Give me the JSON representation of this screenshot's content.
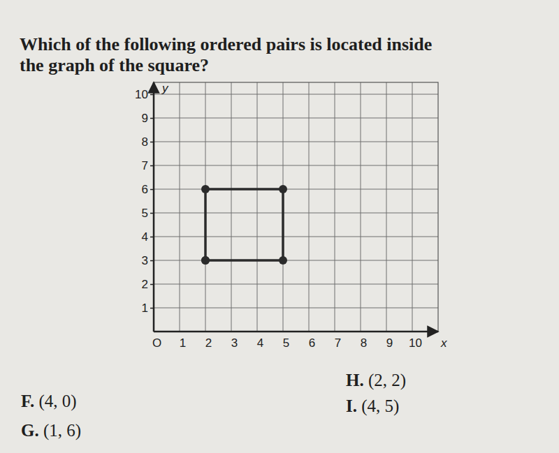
{
  "chart_data": {
    "type": "line",
    "title": "Which of the following ordered pairs is located inside the graph of the square?",
    "x_label": "x",
    "y_label": "y",
    "x": [
      2,
      5,
      5,
      2,
      2
    ],
    "values": [
      3,
      3,
      6,
      6,
      3
    ],
    "color": "#2b2b2b",
    "marker": "circle",
    "line_style": "solid",
    "xlim": [
      0,
      11
    ],
    "ylim": [
      0,
      10.5
    ],
    "xticks": [
      {
        "value": 0,
        "label": "O"
      },
      1,
      2,
      3,
      4,
      5,
      6,
      7,
      8,
      9,
      10
    ],
    "yticks": [
      1,
      2,
      3,
      4,
      5,
      6,
      7,
      8,
      9,
      10
    ],
    "grid": true,
    "annotations": [
      "F. (4, 0)",
      "G. (1, 6)",
      "H. (2, 2)",
      "I. (4, 5)"
    ]
  }
}
